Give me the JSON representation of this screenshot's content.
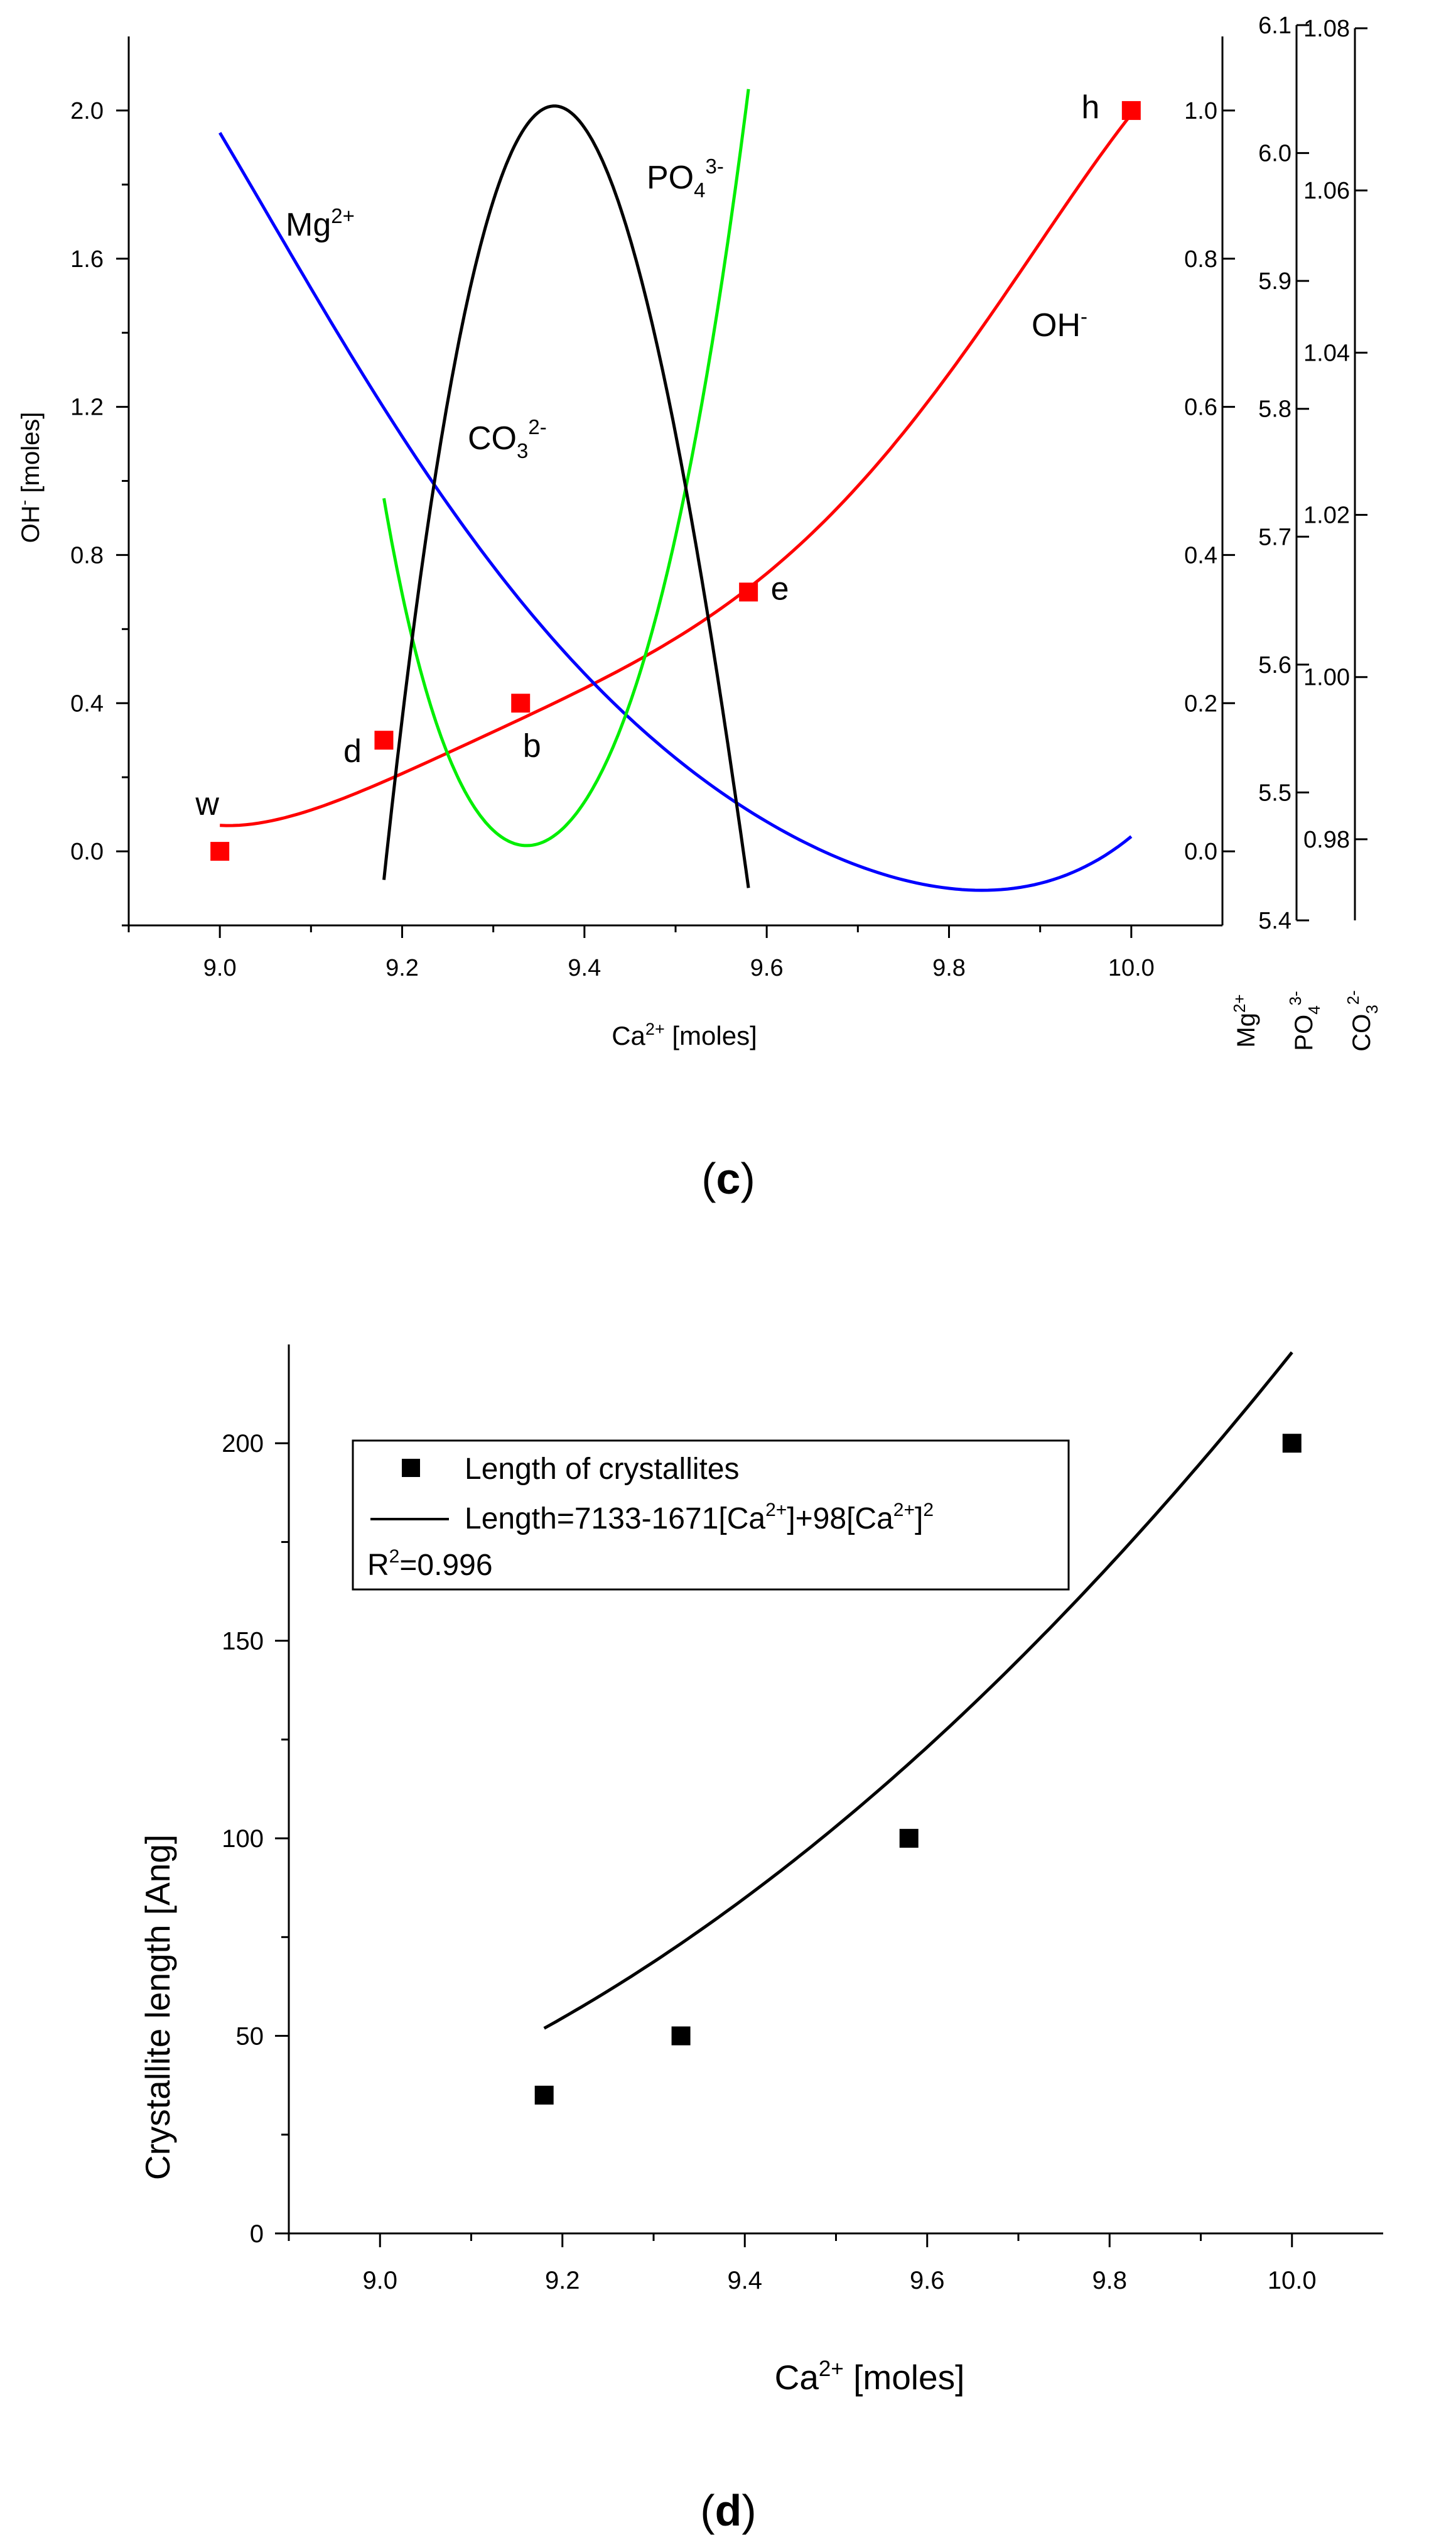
{
  "chart_data": [
    {
      "type": "line",
      "panel_label": "c",
      "xlabel": "Ca",
      "xlabel_sup": "2+",
      "xlabel_unit": " [moles]",
      "xlim": [
        8.9,
        10.1
      ],
      "x_ticks": [
        "9.0",
        "9.2",
        "9.4",
        "9.6",
        "9.8",
        "10.0"
      ],
      "y_axes": [
        {
          "side": "left",
          "label": "OH",
          "label_sup": "-",
          "label_unit": " [moles]",
          "ylim": [
            -0.2,
            2.2
          ],
          "ticks": [
            "0.0",
            "0.4",
            "0.8",
            "1.2",
            "1.6",
            "2.0"
          ]
        },
        {
          "side": "right",
          "label": "Mg",
          "label_sup": "2+",
          "ylim": [
            -0.1,
            1.1
          ],
          "ticks": [
            "0.0",
            "0.2",
            "0.4",
            "0.6",
            "0.8",
            "1.0"
          ]
        },
        {
          "side": "right",
          "label": "PO",
          "label_sub": "4",
          "label_sup": "3-",
          "ylim": [
            5.4,
            6.1
          ],
          "ticks": [
            "5.4",
            "5.5",
            "5.6",
            "5.7",
            "5.8",
            "5.9",
            "6.0",
            "6.1"
          ]
        },
        {
          "side": "right",
          "label": "CO",
          "label_sub": "3",
          "label_sup": "2-",
          "ylim": [
            0.97,
            1.08
          ],
          "ticks": [
            "0.98",
            "1.00",
            "1.02",
            "1.04",
            "1.06",
            "1.08"
          ]
        }
      ],
      "series": [
        {
          "name": "OH-",
          "color": "#ff0000",
          "axis": "OH",
          "x": [
            9.0,
            9.2,
            9.4,
            9.6,
            9.8,
            10.0
          ],
          "y": [
            0.07,
            0.21,
            0.44,
            0.75,
            1.29,
            1.99
          ]
        },
        {
          "name": "Mg2+",
          "color": "#0000ff",
          "axis": "Mg",
          "x": [
            9.0,
            9.2,
            9.4,
            9.6,
            9.8,
            10.0
          ],
          "y": [
            0.97,
            0.56,
            0.24,
            0.04,
            -0.05,
            0.02
          ]
        },
        {
          "name": "PO43-",
          "color": "#00ee00",
          "axis": "PO4",
          "x": [
            9.18,
            9.25,
            9.35,
            9.45,
            9.52,
            9.58
          ],
          "y": [
            5.73,
            5.53,
            5.46,
            5.57,
            5.77,
            6.05
          ]
        },
        {
          "name": "CO32-",
          "color": "#000000",
          "axis": "CO3",
          "x": [
            9.18,
            9.25,
            9.38,
            9.5,
            9.58
          ],
          "y": [
            0.975,
            1.034,
            1.07,
            1.03,
            0.974
          ]
        }
      ],
      "points": [
        {
          "label": "w",
          "x": 9.0,
          "y": 0.0
        },
        {
          "label": "d",
          "x": 9.18,
          "y": 0.3
        },
        {
          "label": "b",
          "x": 9.33,
          "y": 0.4
        },
        {
          "label": "e",
          "x": 9.58,
          "y": 0.7
        },
        {
          "label": "h",
          "x": 10.0,
          "y": 2.0
        }
      ],
      "curve_labels": [
        {
          "base": "Mg",
          "sup": "2+"
        },
        {
          "base": "CO",
          "sub": "3",
          "sup": "2-"
        },
        {
          "base": "PO",
          "sub": "4",
          "sup": "3-"
        },
        {
          "base": "OH",
          "sup": "-"
        }
      ]
    },
    {
      "type": "scatter",
      "panel_label": "d",
      "xlabel": "Ca",
      "xlabel_sup": "2+",
      "xlabel_unit": " [moles]",
      "ylabel": "Crystallite length [Ang]",
      "xlim": [
        8.9,
        10.1
      ],
      "ylim": [
        0,
        225
      ],
      "x_ticks": [
        "9.0",
        "9.2",
        "9.4",
        "9.6",
        "9.8",
        "10.0"
      ],
      "y_ticks": [
        "0",
        "50",
        "100",
        "150",
        "200"
      ],
      "points": {
        "name": "Length of crystallites",
        "x": [
          9.18,
          9.33,
          9.58,
          10.0
        ],
        "y": [
          35,
          50,
          100,
          200
        ]
      },
      "fit": {
        "equation": "Length=7133-1671[Ca2+]+98[Ca2+]2",
        "r2": "0.996",
        "a": 7133,
        "b": -1671,
        "c": 98,
        "x_range": [
          9.18,
          10.0
        ]
      },
      "legend": {
        "entry1": "Length of crystallites",
        "entry2_part1": "Length=7133-1671[Ca",
        "entry2_sup1": "2+",
        "entry2_part2": "]+98[Ca",
        "entry2_sup2": "2+",
        "entry2_part3": "]",
        "entry2_sup3": "2",
        "entry3_base": "R",
        "entry3_sup": "2",
        "entry3_rest": "=0.996"
      }
    }
  ]
}
